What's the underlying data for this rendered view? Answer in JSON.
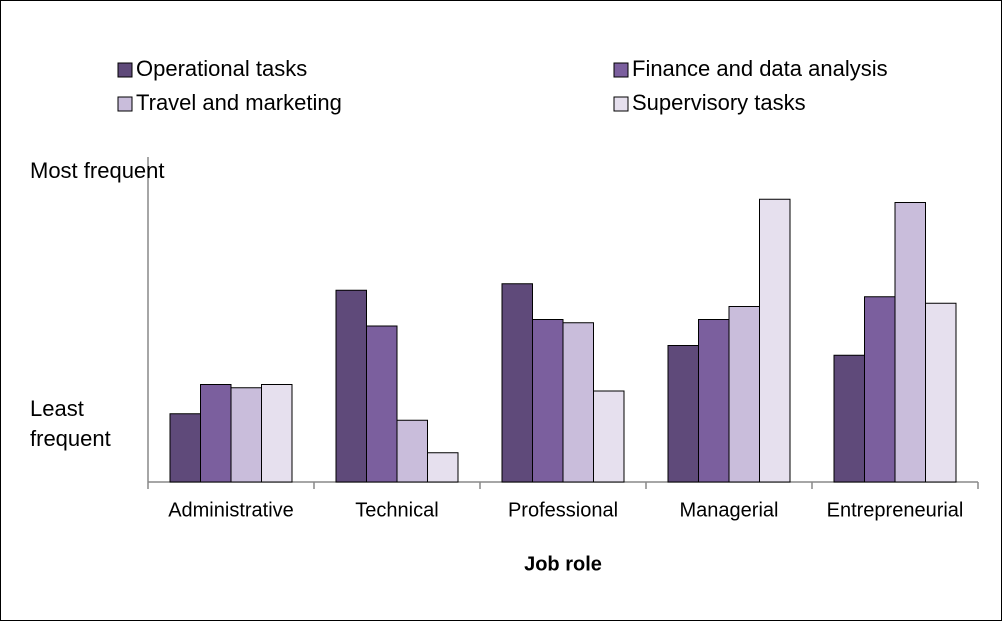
{
  "chart_data": {
    "type": "bar",
    "x_label": "Job role",
    "categories": [
      "Administrative",
      "Technical",
      "Professional",
      "Managerial",
      "Entrepreneurial"
    ],
    "series": [
      {
        "name": "Operational tasks",
        "color": "#5f4a7a",
        "values": [
          21,
          59,
          61,
          42,
          39
        ]
      },
      {
        "name": "Finance and data analysis",
        "color": "#7b5f9e",
        "values": [
          30,
          48,
          50,
          50,
          57
        ]
      },
      {
        "name": "Travel and marketing",
        "color": "#c9bddb",
        "values": [
          29,
          19,
          49,
          54,
          86
        ]
      },
      {
        "name": "Supervisory tasks",
        "color": "#e6e0ee",
        "values": [
          30,
          9,
          28,
          87,
          55
        ]
      }
    ],
    "ylim": [
      0,
      100
    ],
    "yticks": [
      {
        "value": 18,
        "label": "Least frequent"
      },
      {
        "value": 91,
        "label": "Most frequent"
      }
    ],
    "grid": false
  }
}
